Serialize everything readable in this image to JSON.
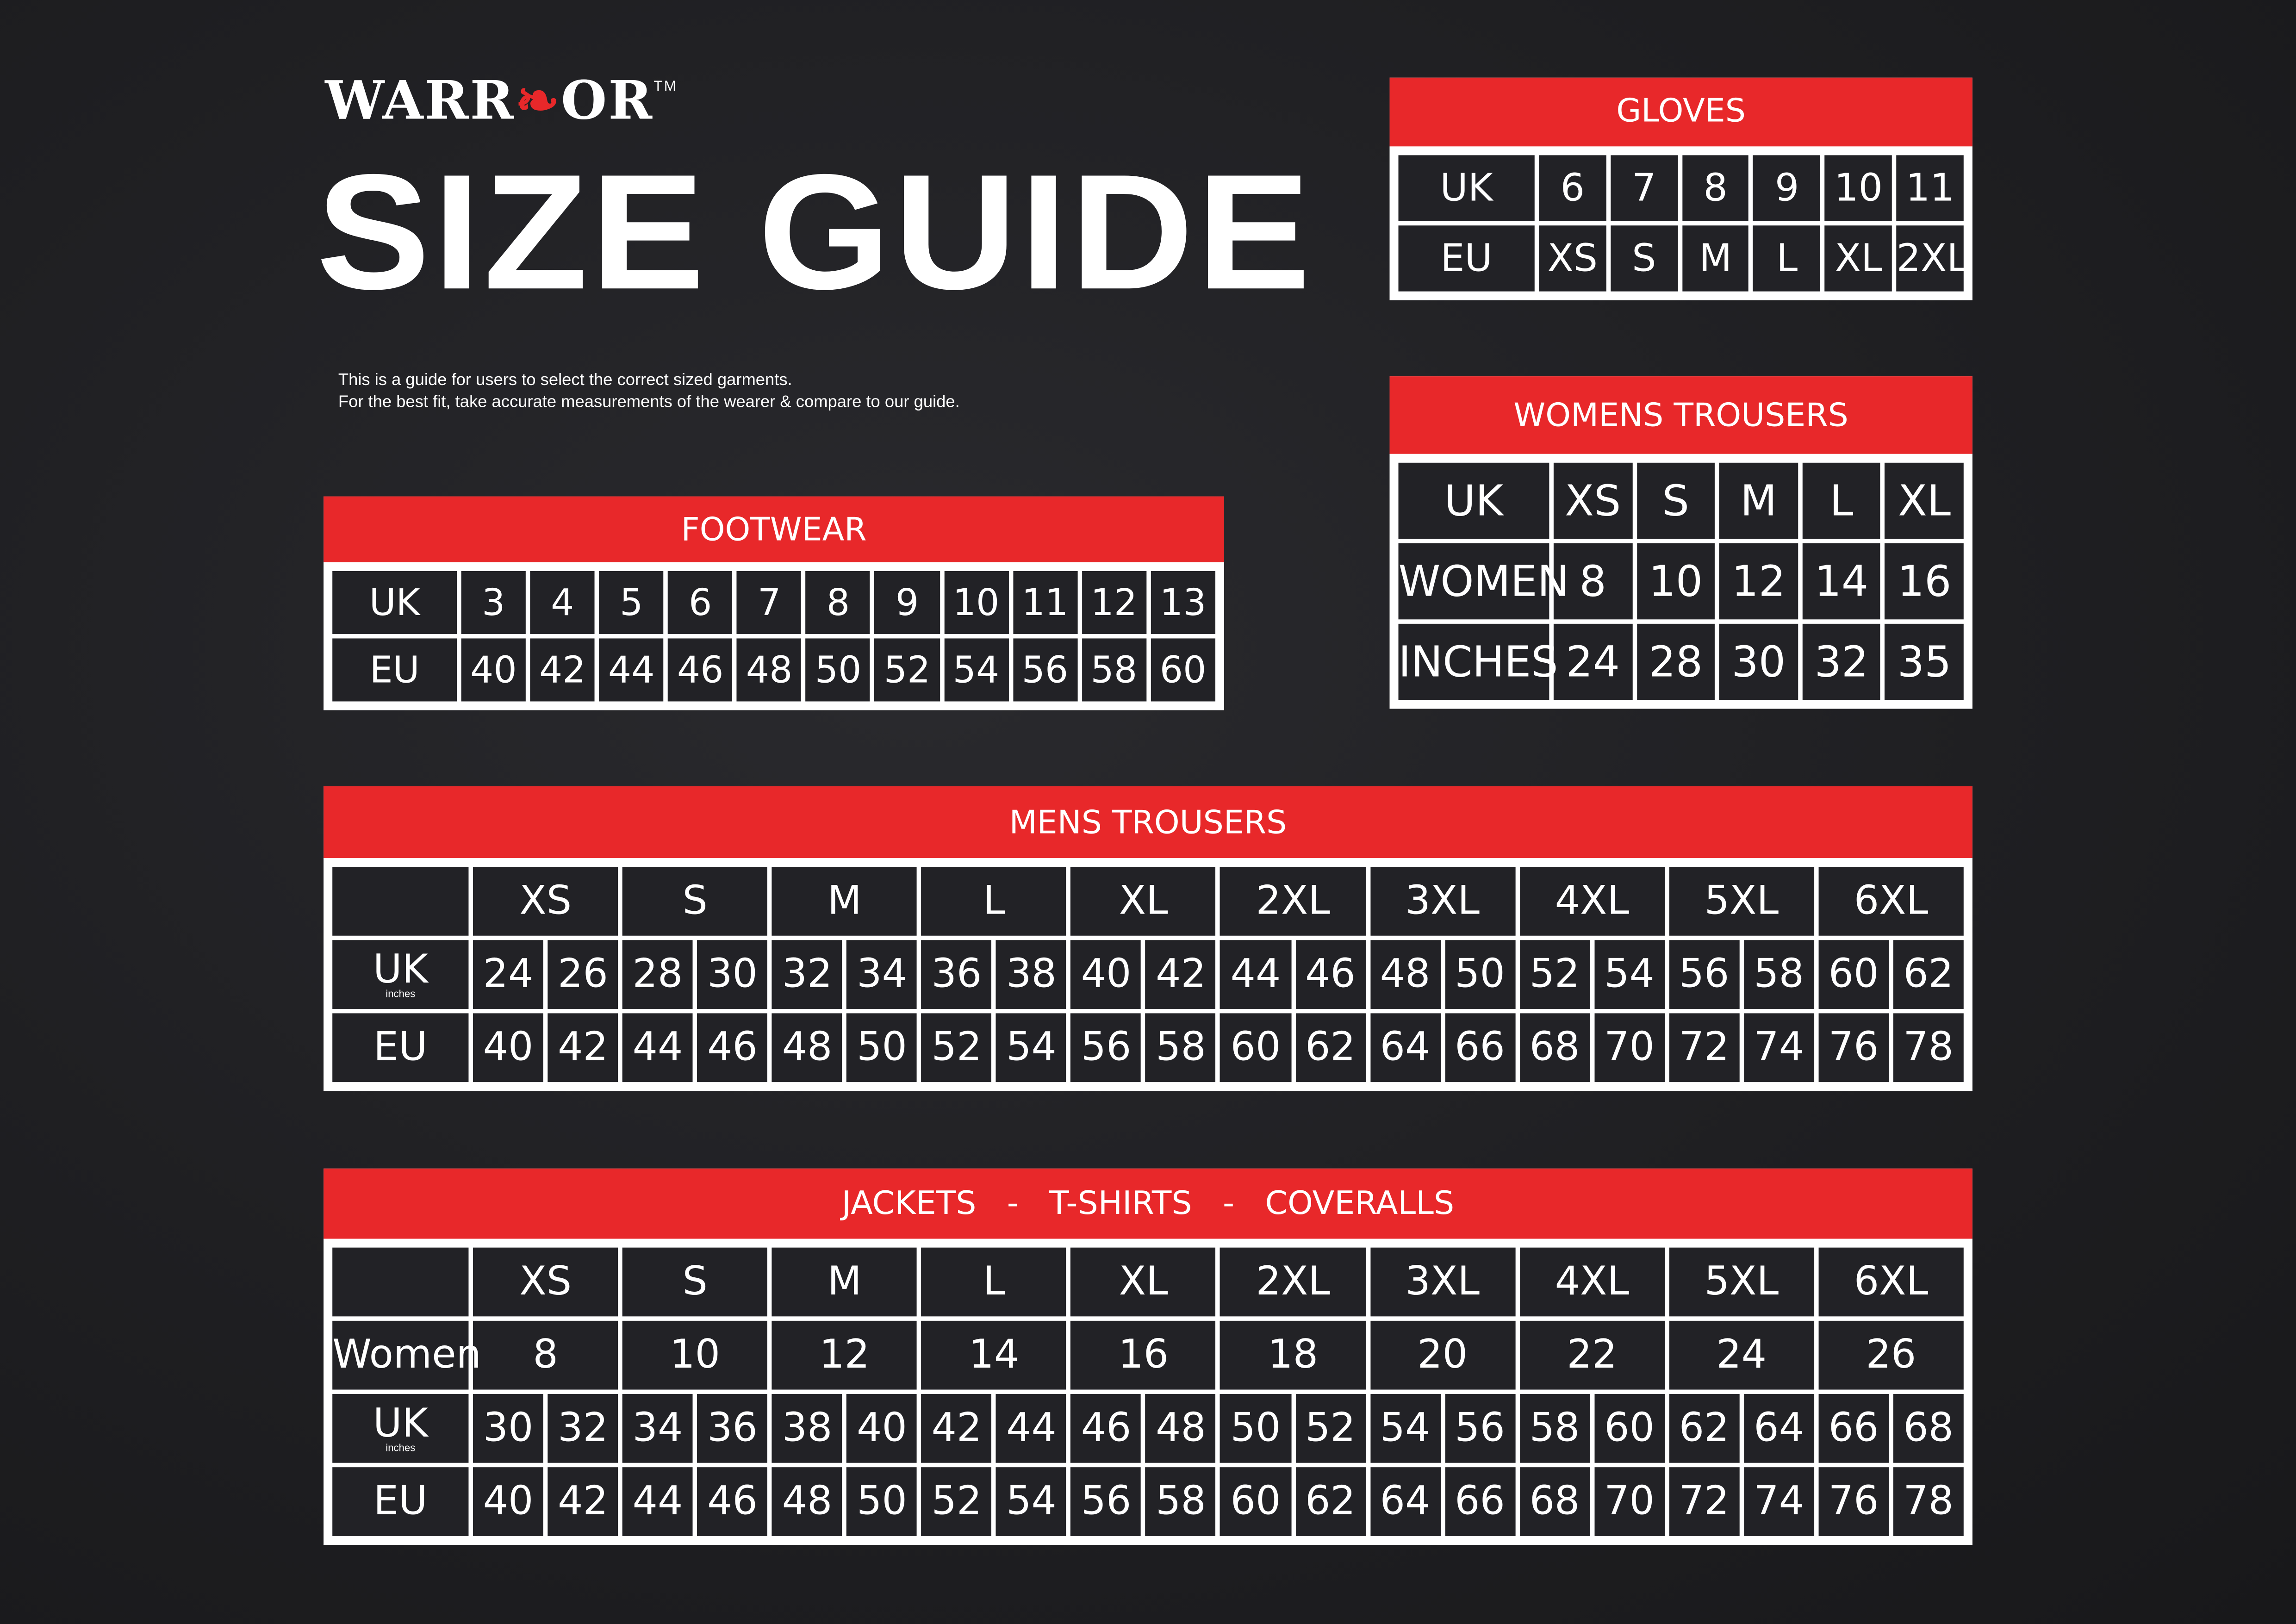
{
  "brand": {
    "logo_text": "WARRIOR",
    "trademark": "TM",
    "accent_color": "#e8282a"
  },
  "title": "SIZE GUIDE",
  "intro": [
    "This is a guide for users to select the correct sized garments.",
    "For the best fit, take accurate measurements of the wearer & compare to our guide."
  ],
  "tables": {
    "gloves": {
      "title": "GLOVES",
      "rows": [
        {
          "label": "UK",
          "cells": [
            "6",
            "7",
            "8",
            "9",
            "10",
            "11"
          ]
        },
        {
          "label": "EU",
          "cells": [
            "XS",
            "S",
            "M",
            "L",
            "XL",
            "2XL"
          ]
        }
      ]
    },
    "womens_trousers": {
      "title": "WOMENS TROUSERS",
      "rows": [
        {
          "label": "UK",
          "cells": [
            "XS",
            "S",
            "M",
            "L",
            "XL"
          ]
        },
        {
          "label": "WOMEN",
          "cells": [
            "8",
            "10",
            "12",
            "14",
            "16"
          ]
        },
        {
          "label": "INCHES",
          "cells": [
            "24",
            "28",
            "30",
            "32",
            "35"
          ]
        }
      ]
    },
    "footwear": {
      "title": "FOOTWEAR",
      "rows": [
        {
          "label": "UK",
          "cells": [
            "3",
            "4",
            "5",
            "6",
            "7",
            "8",
            "9",
            "10",
            "11",
            "12",
            "13"
          ]
        },
        {
          "label": "EU",
          "cells": [
            "40",
            "42",
            "44",
            "46",
            "48",
            "50",
            "52",
            "54",
            "56",
            "58",
            "60"
          ]
        }
      ]
    },
    "mens_trousers": {
      "title": "MENS TROUSERS",
      "rows": [
        {
          "label": "",
          "span": 2,
          "cells": [
            "XS",
            "S",
            "M",
            "L",
            "XL",
            "2XL",
            "3XL",
            "4XL",
            "5XL",
            "6XL"
          ]
        },
        {
          "label": "UK",
          "sublabel": "inches",
          "cells": [
            "24",
            "26",
            "28",
            "30",
            "32",
            "34",
            "36",
            "38",
            "40",
            "42",
            "44",
            "46",
            "48",
            "50",
            "52",
            "54",
            "56",
            "58",
            "60",
            "62"
          ]
        },
        {
          "label": "EU",
          "cells": [
            "40",
            "42",
            "44",
            "46",
            "48",
            "50",
            "52",
            "54",
            "56",
            "58",
            "60",
            "62",
            "64",
            "66",
            "68",
            "70",
            "72",
            "74",
            "76",
            "78"
          ]
        }
      ]
    },
    "jackets": {
      "title": "JACKETS   -   T-SHIRTS   -   COVERALLS",
      "rows": [
        {
          "label": "",
          "span": 2,
          "cells": [
            "XS",
            "S",
            "M",
            "L",
            "XL",
            "2XL",
            "3XL",
            "4XL",
            "5XL",
            "6XL"
          ]
        },
        {
          "label": "Women",
          "span": 2,
          "cells": [
            "8",
            "10",
            "12",
            "14",
            "16",
            "18",
            "20",
            "22",
            "24",
            "26"
          ]
        },
        {
          "label": "UK",
          "sublabel": "inches",
          "cells": [
            "30",
            "32",
            "34",
            "36",
            "38",
            "40",
            "42",
            "44",
            "46",
            "48",
            "50",
            "52",
            "54",
            "56",
            "58",
            "60",
            "62",
            "64",
            "66",
            "68"
          ]
        },
        {
          "label": "EU",
          "cells": [
            "40",
            "42",
            "44",
            "46",
            "48",
            "50",
            "52",
            "54",
            "56",
            "58",
            "60",
            "62",
            "64",
            "66",
            "68",
            "70",
            "72",
            "74",
            "76",
            "78"
          ]
        }
      ]
    }
  }
}
